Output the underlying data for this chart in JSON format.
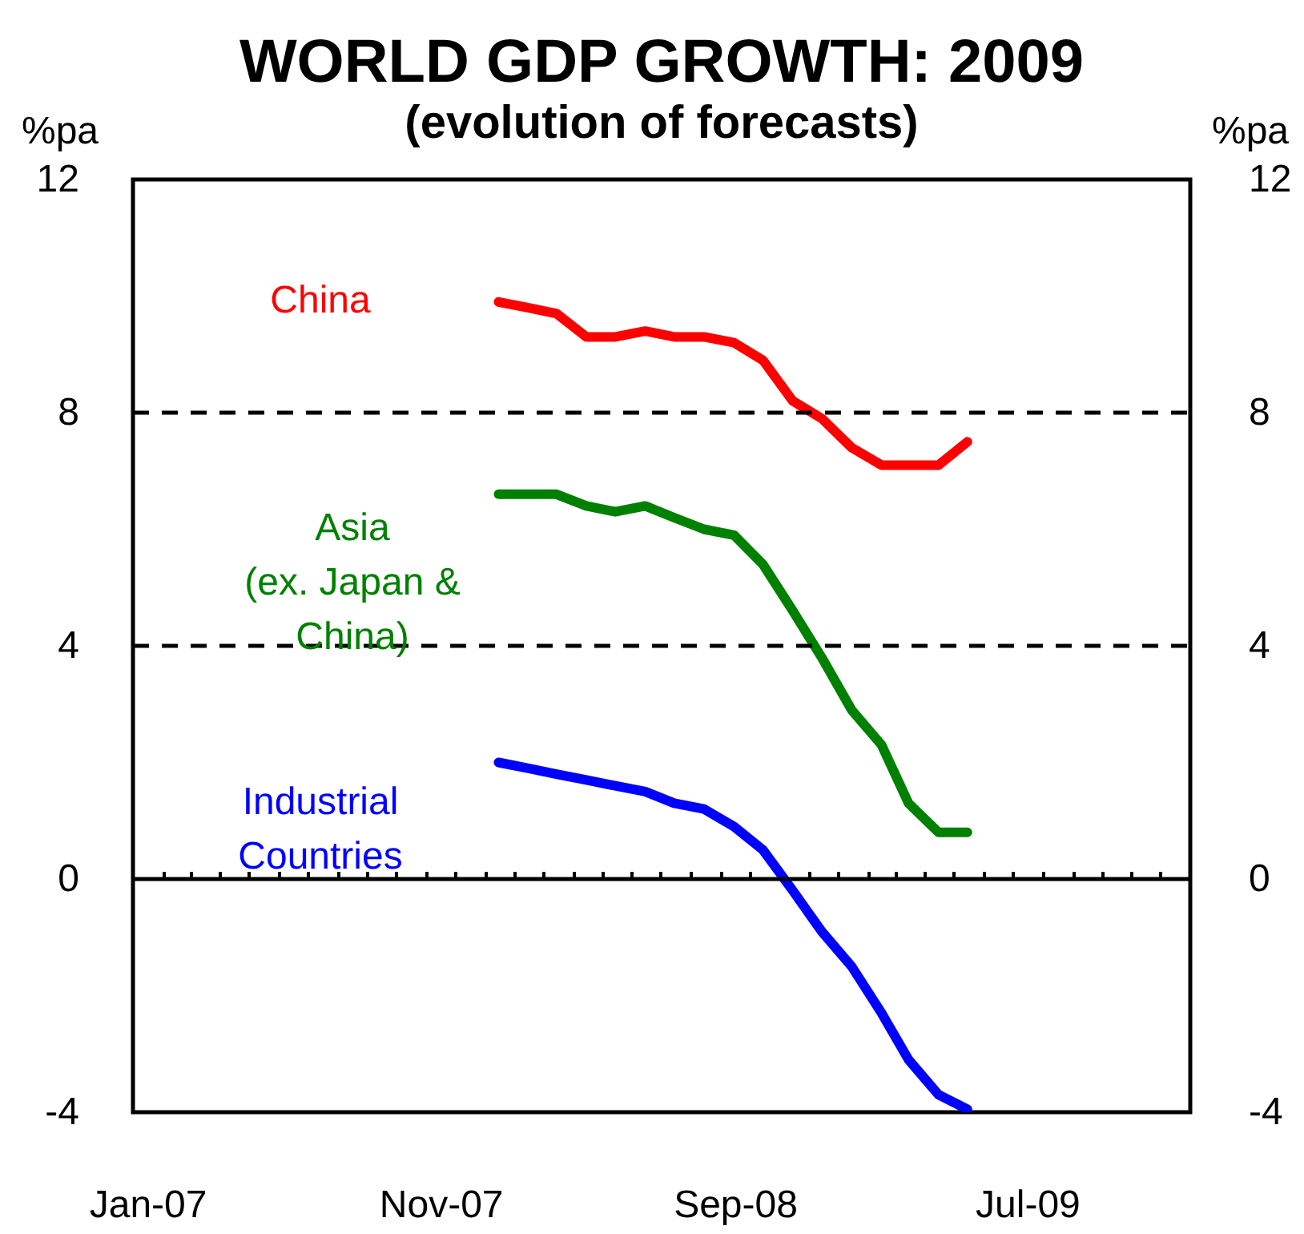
{
  "chart_data": {
    "type": "line",
    "title": "WORLD GDP GROWTH:  2009",
    "subtitle": "(evolution of forecasts)",
    "ylabel": "%pa",
    "y2label": "%pa",
    "x": [
      "2008-01-15",
      "2008-02-15",
      "2008-03-15",
      "2008-04-15",
      "2008-05-15",
      "2008-06-15",
      "2008-07-15",
      "2008-08-15",
      "2008-09-15",
      "2008-10-15",
      "2008-11-15",
      "2008-12-15",
      "2009-01-15",
      "2009-02-15",
      "2009-03-15",
      "2009-04-15",
      "2009-05-15"
    ],
    "series": [
      {
        "name": "China",
        "color": "#ff0000",
        "values": [
          9.9,
          9.8,
          9.7,
          9.3,
          9.3,
          9.4,
          9.3,
          9.3,
          9.2,
          8.9,
          8.2,
          7.9,
          7.4,
          7.1,
          7.1,
          7.1,
          7.5
        ]
      },
      {
        "name": "Asia\n(ex. Japan &\nChina)",
        "color": "#008000",
        "values": [
          6.6,
          6.6,
          6.6,
          6.4,
          6.3,
          6.4,
          6.2,
          6.0,
          5.9,
          5.4,
          4.6,
          3.8,
          2.9,
          2.3,
          1.3,
          0.8,
          0.8
        ]
      },
      {
        "name": "Industrial\nCountries",
        "color": "#0000ff",
        "values": [
          2.0,
          1.9,
          1.8,
          1.7,
          1.6,
          1.5,
          1.3,
          1.2,
          0.9,
          0.5,
          -0.2,
          -0.9,
          -1.5,
          -2.3,
          -3.1,
          -3.7,
          -3.95
        ]
      }
    ],
    "xlim": [
      "2007-01",
      "2010-01"
    ],
    "xticks": [
      {
        "value": "2007-01-16",
        "label": "Jan-07"
      },
      {
        "value": "2007-11-16",
        "label": "Nov-07"
      },
      {
        "value": "2008-09-16",
        "label": "Sep-08"
      },
      {
        "value": "2009-07-16",
        "label": "Jul-09"
      },
      {
        "value": "2007-02",
        "label": null
      },
      {
        "value": "2007-03",
        "label": null
      },
      {
        "value": "2007-04",
        "label": null
      },
      {
        "value": "2007-05",
        "label": null
      },
      {
        "value": "2007-06",
        "label": null
      },
      {
        "value": "2007-07",
        "label": null
      },
      {
        "value": "2007-08",
        "label": null
      },
      {
        "value": "2007-09",
        "label": null
      },
      {
        "value": "2007-10",
        "label": null
      },
      {
        "value": "2007-11",
        "label": null
      },
      {
        "value": "2007-12",
        "label": null
      },
      {
        "value": "2008-01",
        "label": null
      },
      {
        "value": "2008-02",
        "label": null
      },
      {
        "value": "2008-03",
        "label": null
      },
      {
        "value": "2008-04",
        "label": null
      },
      {
        "value": "2008-05",
        "label": null
      },
      {
        "value": "2008-06",
        "label": null
      },
      {
        "value": "2008-07",
        "label": null
      },
      {
        "value": "2008-08",
        "label": null
      },
      {
        "value": "2008-09",
        "label": null
      },
      {
        "value": "2008-10",
        "label": null
      },
      {
        "value": "2008-11",
        "label": null
      },
      {
        "value": "2008-12",
        "label": null
      },
      {
        "value": "2009-01",
        "label": null
      },
      {
        "value": "2009-02",
        "label": null
      },
      {
        "value": "2009-03",
        "label": null
      },
      {
        "value": "2009-04",
        "label": null
      },
      {
        "value": "2009-05",
        "label": null
      },
      {
        "value": "2009-06",
        "label": null
      },
      {
        "value": "2009-07",
        "label": null
      },
      {
        "value": "2009-08",
        "label": null
      },
      {
        "value": "2009-09",
        "label": null
      },
      {
        "value": "2009-10",
        "label": null
      },
      {
        "value": "2009-11",
        "label": null
      },
      {
        "value": "2009-12",
        "label": null
      }
    ],
    "ylim": [
      -4,
      12
    ],
    "yticks": [
      -4,
      0,
      4,
      8,
      12
    ],
    "y2lim": [
      -4,
      12
    ],
    "y2ticks": [
      -4,
      0,
      4,
      8,
      12
    ],
    "ref_lines": [
      {
        "axis": "y",
        "value": 0,
        "line_style": "solid",
        "color": "#000000"
      },
      {
        "axis": "y",
        "value": 4,
        "line_style": "dashed",
        "color": "#000000"
      },
      {
        "axis": "y",
        "value": 8,
        "line_style": "dashed",
        "color": "#000000"
      }
    ],
    "grid": false,
    "legend": false
  }
}
